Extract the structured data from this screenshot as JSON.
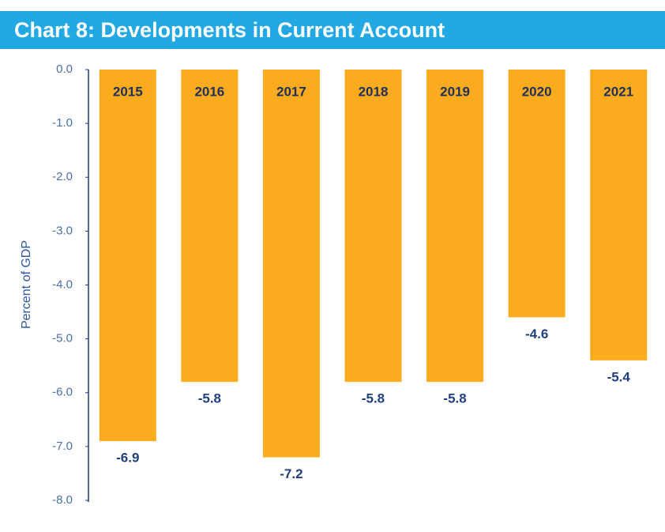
{
  "chart_data": {
    "type": "bar",
    "title": "Chart 8: Developments in Current Account",
    "y_axis_label": "Percent of GDP",
    "categories": [
      "2015",
      "2016",
      "2017",
      "2018",
      "2019",
      "2020",
      "2021"
    ],
    "values": [
      -6.9,
      -5.8,
      -7.2,
      -5.8,
      -5.8,
      -4.6,
      -5.4
    ],
    "color": "#fbab1e",
    "ylim": [
      -8,
      0
    ],
    "yticks": [
      {
        "value": 0,
        "label": "0.0"
      },
      {
        "value": -1,
        "label": "-1.0"
      },
      {
        "value": -2,
        "label": "-2.0"
      },
      {
        "value": -3,
        "label": "-3.0"
      },
      {
        "value": -4,
        "label": "-4.0"
      },
      {
        "value": -5,
        "label": "-5.0"
      },
      {
        "value": -6,
        "label": "-6.0"
      },
      {
        "value": -7,
        "label": "-7.0"
      },
      {
        "value": -8,
        "label": "-8.0"
      }
    ],
    "grid": false
  }
}
